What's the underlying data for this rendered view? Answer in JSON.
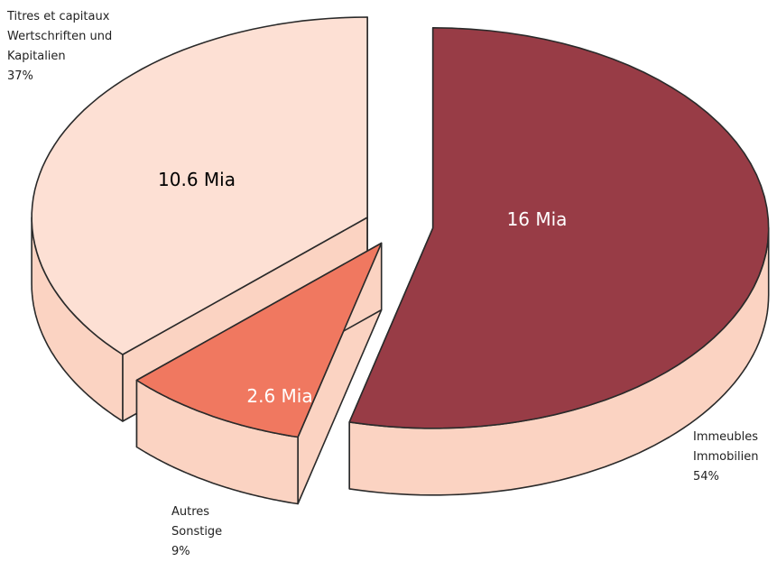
{
  "chart_data": {
    "type": "pie3d",
    "categories": [
      [
        "Immeubles",
        "Immobilien"
      ],
      [
        "Autres",
        "Sonstige"
      ],
      [
        "Titres et capitaux",
        "Wertschriften und",
        "Kapitalien"
      ]
    ],
    "values": [
      54,
      9,
      37
    ],
    "value_labels": [
      "54%",
      "9%",
      "37%"
    ],
    "amounts": [
      16,
      2.6,
      10.6
    ],
    "amount_labels": [
      "16 Mia",
      "2.6 Mia",
      "10.6 Mia"
    ],
    "colors": [
      "#983c46",
      "#f07860",
      "#fde0d4"
    ],
    "side_color": "#fbd3c2"
  }
}
